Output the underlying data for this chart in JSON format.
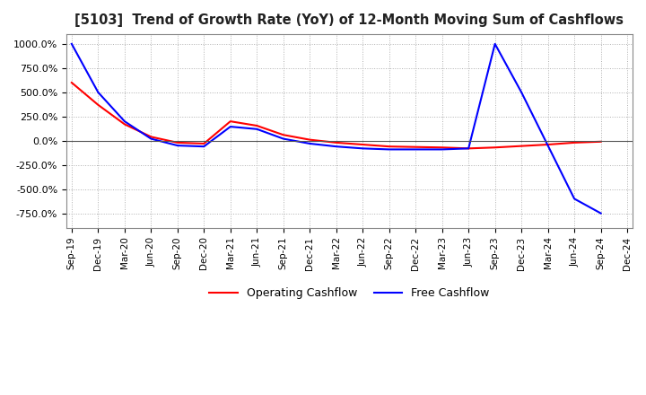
{
  "title": "[5103]  Trend of Growth Rate (YoY) of 12-Month Moving Sum of Cashflows",
  "ylim": [
    -900,
    1100
  ],
  "yticks": [
    -750,
    -500,
    -250,
    0,
    250,
    500,
    750,
    1000
  ],
  "ytick_labels": [
    "-750.0%",
    "-500.0%",
    "-250.0%",
    "0.0%",
    "250.0%",
    "500.0%",
    "750.0%",
    "1000.0%"
  ],
  "background_color": "#ffffff",
  "grid_color": "#b0b0b0",
  "operating_color": "#ff0000",
  "free_color": "#0000ff",
  "legend_labels": [
    "Operating Cashflow",
    "Free Cashflow"
  ],
  "x_labels": [
    "Sep-19",
    "Dec-19",
    "Mar-20",
    "Jun-20",
    "Sep-20",
    "Dec-20",
    "Mar-21",
    "Jun-21",
    "Sep-21",
    "Dec-21",
    "Mar-22",
    "Jun-22",
    "Sep-22",
    "Dec-22",
    "Mar-23",
    "Jun-23",
    "Sep-23",
    "Dec-23",
    "Mar-24",
    "Jun-24",
    "Sep-24",
    "Dec-24"
  ],
  "operating_cashflow": [
    600,
    370,
    170,
    40,
    -20,
    -30,
    200,
    155,
    60,
    10,
    -20,
    -40,
    -60,
    -65,
    -70,
    -80,
    -70,
    -55,
    -40,
    -20,
    -10,
    null
  ],
  "free_cashflow": [
    1000,
    500,
    200,
    20,
    -50,
    -60,
    145,
    120,
    20,
    -30,
    -60,
    -80,
    -90,
    -90,
    -90,
    -80,
    1000,
    500,
    -50,
    -600,
    -750,
    null
  ]
}
